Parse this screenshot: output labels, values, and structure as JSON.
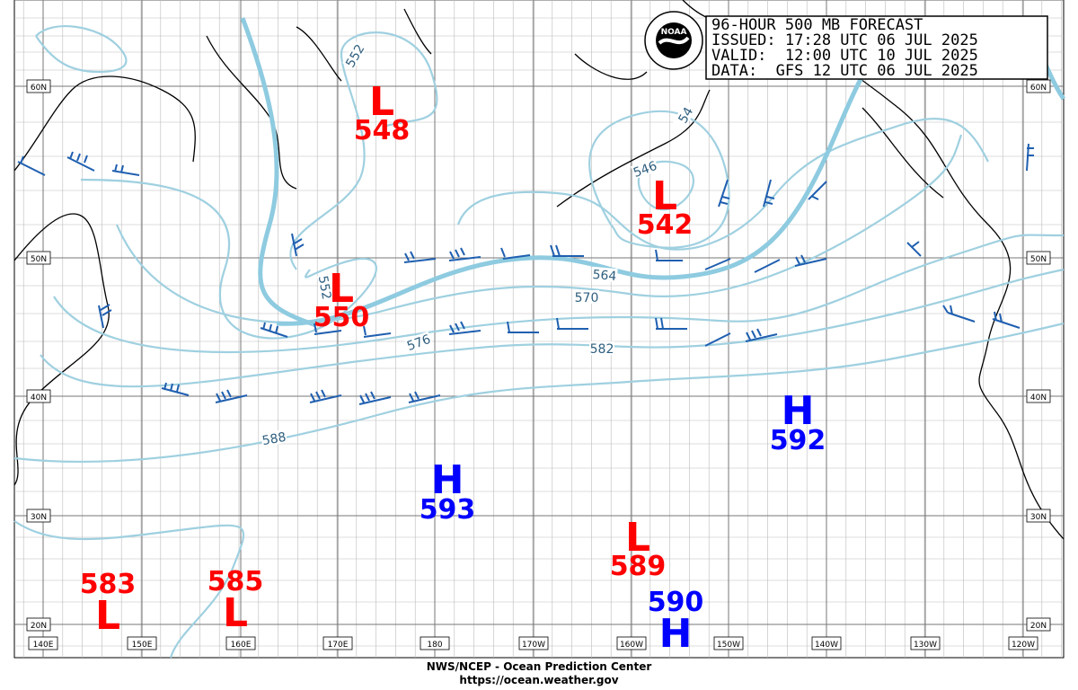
{
  "header": {
    "lines": [
      "96-HOUR 500 MB FORECAST",
      "ISSUED: 17:28 UTC 06 JUL 2025",
      "VALID:  12:00 UTC 10 JUL 2025",
      "DATA:  GFS 12 UTC 06 JUL 2025"
    ],
    "logo": "NOAA"
  },
  "footer": {
    "lines": [
      "NWS/NCEP - Ocean Prediction Center",
      "https://ocean.weather.gov"
    ]
  },
  "map": {
    "lat_labels": [
      "60N",
      "50N",
      "40N",
      "30N",
      "20N"
    ],
    "lon_labels": [
      "140E",
      "150E",
      "160E",
      "170E",
      "180",
      "170W",
      "160W",
      "150W",
      "140W",
      "130W",
      "120W"
    ],
    "centers": [
      {
        "type": "L",
        "value": 548
      },
      {
        "type": "L",
        "value": 550
      },
      {
        "type": "L",
        "value": 542
      },
      {
        "type": "H",
        "value": 592
      },
      {
        "type": "H",
        "value": 593
      },
      {
        "type": "L",
        "value": 589
      },
      {
        "type": "L",
        "value": 583
      },
      {
        "type": "L",
        "value": 585
      },
      {
        "type": "H",
        "value": 590
      }
    ],
    "contour_labels": [
      552,
      546,
      564,
      570,
      576,
      582,
      588,
      552,
      54
    ]
  }
}
